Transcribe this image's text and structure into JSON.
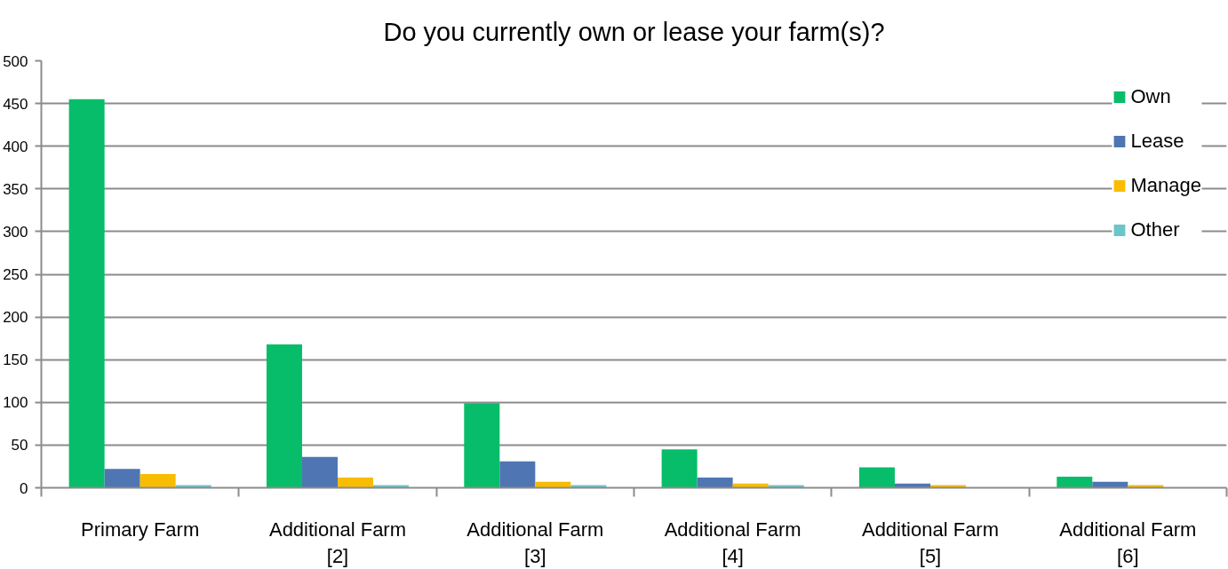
{
  "chart_data": {
    "type": "bar",
    "title": "Do you currently own or lease your farm(s)?",
    "categories": [
      "Primary Farm",
      "Additional Farm [2]",
      "Additional Farm [3]",
      "Additional Farm [4]",
      "Additional Farm [5]",
      "Additional Farm [6]"
    ],
    "series": [
      {
        "name": "Own",
        "color": "#08bd6a",
        "values": [
          455,
          168,
          99,
          45,
          24,
          13
        ]
      },
      {
        "name": "Lease",
        "color": "#4f76b3",
        "values": [
          22,
          36,
          31,
          12,
          5,
          7
        ]
      },
      {
        "name": "Manage",
        "color": "#f8bc00",
        "values": [
          16,
          12,
          7,
          5,
          3,
          3
        ]
      },
      {
        "name": "Other",
        "color": "#6cc5c8",
        "values": [
          3,
          3,
          3,
          3,
          null,
          null
        ]
      }
    ],
    "ylim": [
      0,
      500
    ],
    "yticks": [
      0,
      50,
      100,
      150,
      200,
      250,
      300,
      350,
      400,
      450,
      500
    ],
    "grid": "y",
    "legend": "top right"
  }
}
